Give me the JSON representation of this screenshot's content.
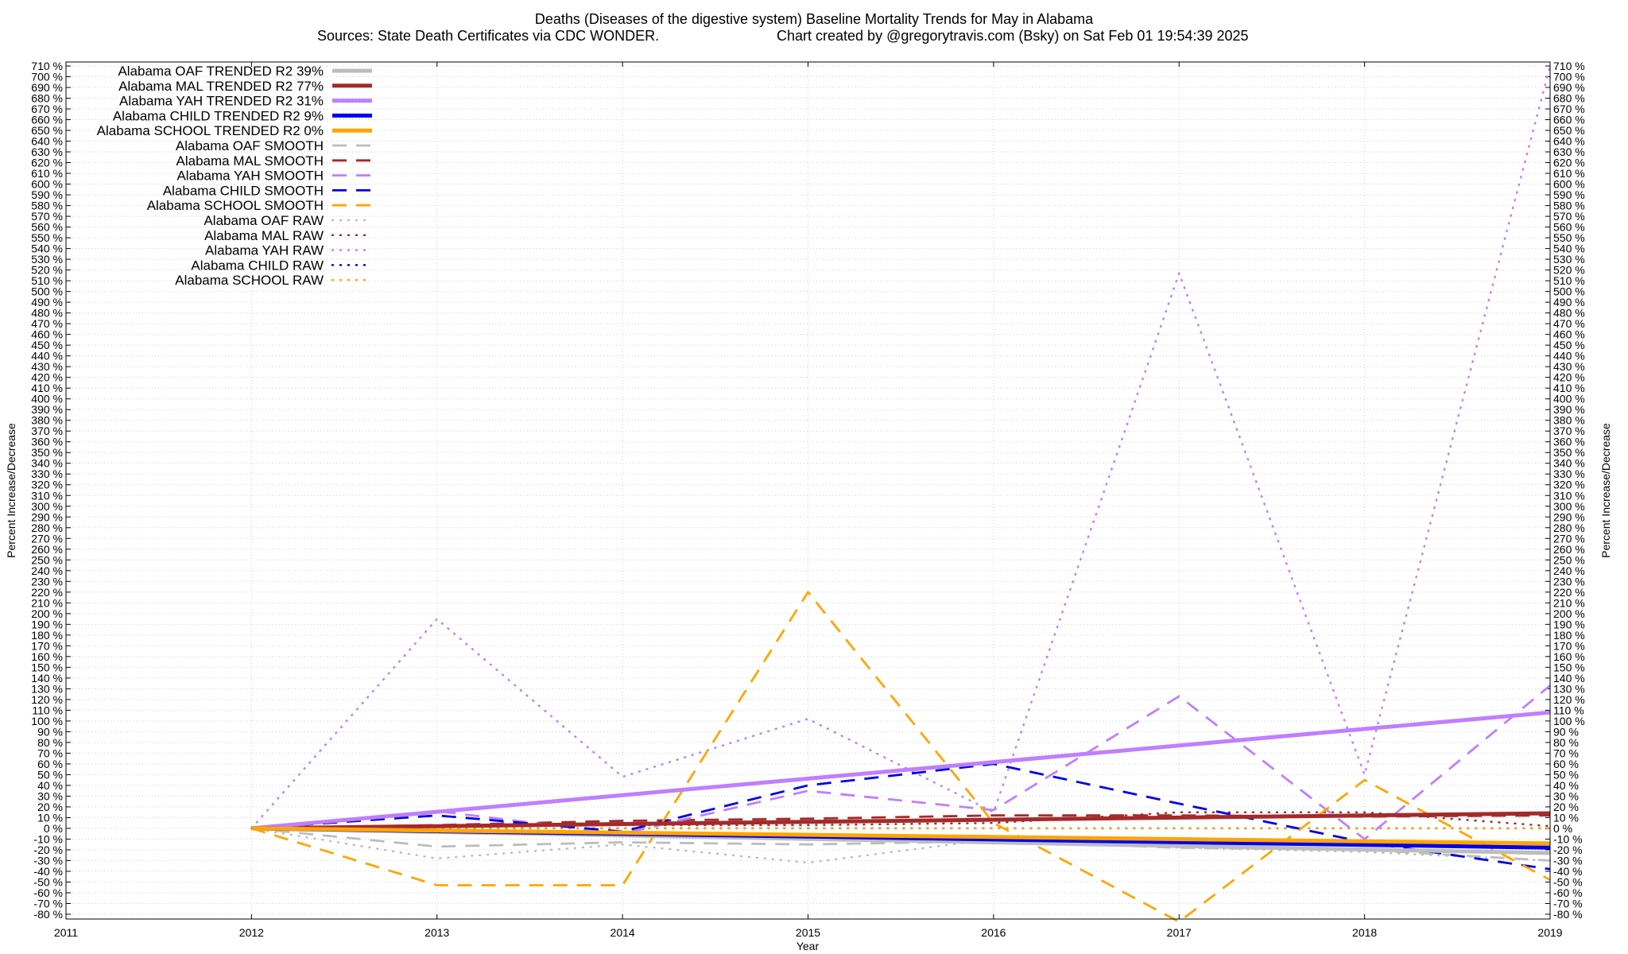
{
  "chart_data": {
    "type": "line",
    "title": "Deaths (Diseases of the digestive system)  Baseline Mortality Trends for May in Alabama",
    "subtitle_left": "Sources: State Death Certificates via CDC WONDER.",
    "subtitle_right": "Chart created by @gregorytravis.com (Bsky) on Sat Feb 01 19:54:39 2025",
    "xlabel": "Year",
    "ylabel": "Percent Increase/Decrease",
    "ylabel_right": "Percent Increase/Decrease",
    "xlim": [
      2011,
      2019
    ],
    "ylim": [
      -80,
      710
    ],
    "x_ticks": [
      2011,
      2012,
      2013,
      2014,
      2015,
      2016,
      2017,
      2018,
      2019
    ],
    "y_tick_step": 10,
    "y_tick_suffix": " %",
    "grid": true,
    "legend_position": "top-left",
    "x": [
      2012,
      2013,
      2014,
      2015,
      2016,
      2017,
      2018,
      2019
    ],
    "series": [
      {
        "name": "Alabama OAF TRENDED R2  39%",
        "style": "solid",
        "color": "#bdbdbd",
        "values": [
          0,
          -3.3,
          -6.6,
          -9.9,
          -13.1,
          -16.4,
          -19.7,
          -23
        ]
      },
      {
        "name": "Alabama MAL TRENDED R2  77%",
        "style": "solid",
        "color": "#a52a2a",
        "values": [
          0,
          2,
          4,
          6,
          8,
          10,
          12,
          14
        ]
      },
      {
        "name": "Alabama YAH TRENDED R2  31%",
        "style": "solid",
        "color": "#bf7fff",
        "values": [
          0,
          15.4,
          30.9,
          46.3,
          61.7,
          77.1,
          92.6,
          108
        ]
      },
      {
        "name": "Alabama CHILD TRENDED R2   9%",
        "style": "solid",
        "color": "#0000ee",
        "values": [
          0,
          -2.6,
          -5.1,
          -7.7,
          -10.3,
          -12.9,
          -15.4,
          -18
        ]
      },
      {
        "name": "Alabama SCHOOL TRENDED R2   0%",
        "style": "solid",
        "color": "#ffa500",
        "values": [
          0,
          -2,
          -4,
          -6,
          -8,
          -10,
          -12,
          -14
        ]
      },
      {
        "name": "Alabama OAF SMOOTH",
        "style": "dashed",
        "color": "#bdbdbd",
        "values": [
          0,
          -17,
          -13,
          -15,
          -12,
          -18,
          -20,
          -30
        ]
      },
      {
        "name": "Alabama MAL SMOOTH",
        "style": "dashed",
        "color": "#a52a2a",
        "values": [
          0,
          3,
          7,
          9,
          12,
          12,
          11,
          12
        ]
      },
      {
        "name": "Alabama YAH SMOOTH",
        "style": "dashed",
        "color": "#bf7fff",
        "values": [
          0,
          16,
          -5,
          35,
          17,
          123,
          -10,
          133
        ]
      },
      {
        "name": "Alabama CHILD SMOOTH",
        "style": "dashed",
        "color": "#0000ee",
        "values": [
          0,
          12,
          -3,
          40,
          60,
          23,
          -13,
          -38
        ]
      },
      {
        "name": "Alabama SCHOOL SMOOTH",
        "style": "dashed",
        "color": "#ffa500",
        "values": [
          0,
          -53,
          -53,
          220,
          5,
          -87,
          45,
          -48
        ]
      },
      {
        "name": "Alabama OAF RAW",
        "style": "dotted",
        "color": "#bdbdbd",
        "values": [
          0,
          -28,
          -15,
          -32,
          -10,
          -18,
          -22,
          -30
        ]
      },
      {
        "name": "Alabama MAL RAW",
        "style": "dotted",
        "color": "#a52a2a",
        "values": [
          0,
          2,
          3,
          3,
          5,
          15,
          15,
          2
        ]
      },
      {
        "name": "Alabama YAH RAW",
        "style": "dotted",
        "color": "#bf7fff",
        "values": [
          0,
          195,
          48,
          102,
          15,
          517,
          50,
          710
        ]
      },
      {
        "name": "Alabama CHILD RAW",
        "style": "dotted",
        "color": "#0000ee",
        "values": [
          0,
          0,
          0,
          0,
          0,
          0,
          0,
          0
        ]
      },
      {
        "name": "Alabama SCHOOL RAW",
        "style": "dotted",
        "color": "#ffa500",
        "values": [
          0,
          0,
          0,
          0,
          0,
          0,
          0,
          0
        ]
      }
    ]
  }
}
